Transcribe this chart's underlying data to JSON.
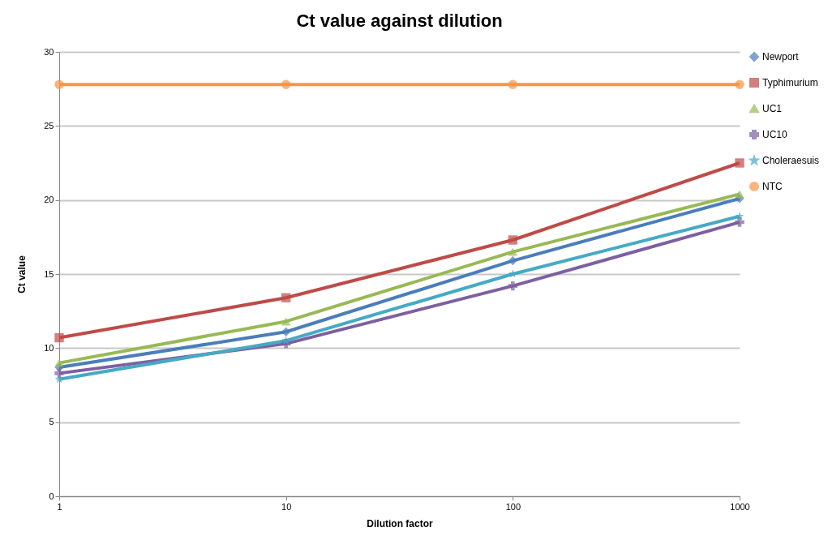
{
  "chart_data": {
    "type": "line",
    "title": "Ct value against dilution",
    "xlabel": "Dilution factor",
    "ylabel": "Ct value",
    "x": [
      1,
      10,
      100,
      1000
    ],
    "log": "x",
    "xlim": [
      1,
      1000
    ],
    "xticks": [
      1,
      10,
      100,
      1000
    ],
    "ylim": [
      0,
      30
    ],
    "yticks": [
      0,
      5,
      10,
      15,
      20,
      25,
      30
    ],
    "grid": "y",
    "legend": "right",
    "line_style": "solid",
    "series": [
      {
        "name": "Newport",
        "color": "#4a7ebb",
        "marker": "diamond",
        "values": [
          8.7,
          11.1,
          15.9,
          20.1
        ]
      },
      {
        "name": "Typhimurium",
        "color": "#be4b48",
        "marker": "square",
        "values": [
          10.7,
          13.4,
          17.3,
          22.5
        ]
      },
      {
        "name": "UC1",
        "color": "#98b954",
        "marker": "triangle",
        "values": [
          9.0,
          11.8,
          16.5,
          20.4
        ]
      },
      {
        "name": "UC10",
        "color": "#7d60a0",
        "marker": "cross",
        "values": [
          8.3,
          10.3,
          14.2,
          18.5
        ]
      },
      {
        "name": "Choleraesuis",
        "color": "#46aac5",
        "marker": "star",
        "values": [
          7.9,
          10.5,
          15.0,
          18.9
        ]
      },
      {
        "name": "NTC",
        "color": "#f79646",
        "marker": "circle",
        "values": [
          27.8,
          27.8,
          27.8,
          27.8
        ]
      }
    ]
  }
}
